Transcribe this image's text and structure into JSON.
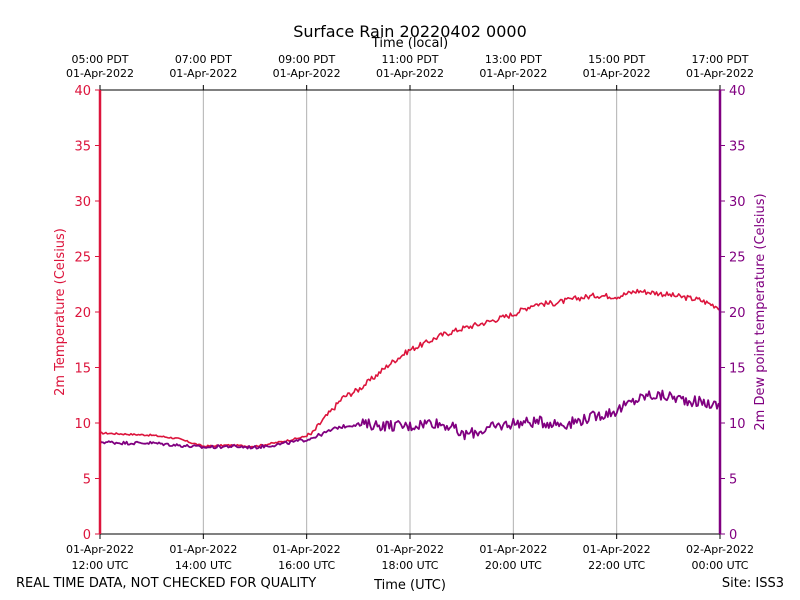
{
  "chart_data": {
    "type": "line",
    "title": "Surface Rain 20220402 0000",
    "top_axis_label": "Time (local)",
    "xlabel": "Time (UTC)",
    "ylabel_left": "2m Temperature (Celsius)",
    "ylabel_right": "2m Dew point temperature (Celsius)",
    "x_range_hours_utc": [
      12,
      24
    ],
    "ylim": [
      0,
      40
    ],
    "y_ticks": [
      "0",
      "5",
      "10",
      "15",
      "20",
      "25",
      "30",
      "35",
      "40"
    ],
    "grid": "vertical",
    "bottom_ticks": [
      {
        "hour": 12,
        "date": "01-Apr-2022",
        "time": "12:00 UTC"
      },
      {
        "hour": 14,
        "date": "01-Apr-2022",
        "time": "14:00 UTC"
      },
      {
        "hour": 16,
        "date": "01-Apr-2022",
        "time": "16:00 UTC"
      },
      {
        "hour": 18,
        "date": "01-Apr-2022",
        "time": "18:00 UTC"
      },
      {
        "hour": 20,
        "date": "01-Apr-2022",
        "time": "20:00 UTC"
      },
      {
        "hour": 22,
        "date": "01-Apr-2022",
        "time": "22:00 UTC"
      },
      {
        "hour": 24,
        "date": "02-Apr-2022",
        "time": "00:00 UTC"
      }
    ],
    "top_ticks": [
      {
        "hour": 12,
        "time": "05:00 PDT",
        "date": "01-Apr-2022"
      },
      {
        "hour": 14,
        "time": "07:00 PDT",
        "date": "01-Apr-2022"
      },
      {
        "hour": 16,
        "time": "09:00 PDT",
        "date": "01-Apr-2022"
      },
      {
        "hour": 18,
        "time": "11:00 PDT",
        "date": "01-Apr-2022"
      },
      {
        "hour": 20,
        "time": "13:00 PDT",
        "date": "01-Apr-2022"
      },
      {
        "hour": 22,
        "time": "15:00 PDT",
        "date": "01-Apr-2022"
      },
      {
        "hour": 24,
        "time": "17:00 PDT",
        "date": "01-Apr-2022"
      }
    ],
    "series": [
      {
        "name": "2m Temperature",
        "color": "#dc143c",
        "axis": "left",
        "x": [
          12.0,
          12.5,
          13.0,
          13.5,
          14.0,
          14.5,
          15.0,
          15.5,
          15.9,
          16.1,
          16.3,
          16.5,
          16.7,
          17.0,
          17.3,
          17.6,
          18.0,
          18.3,
          18.6,
          19.0,
          19.5,
          20.0,
          20.4,
          20.8,
          21.2,
          21.6,
          22.0,
          22.4,
          22.8,
          23.2,
          23.6,
          24.0
        ],
        "values": [
          9.1,
          9.0,
          8.9,
          8.6,
          7.9,
          8.0,
          7.9,
          8.3,
          8.7,
          9.0,
          10.2,
          11.2,
          12.3,
          13.0,
          14.1,
          15.3,
          16.6,
          17.2,
          17.9,
          18.5,
          19.1,
          19.8,
          20.7,
          20.8,
          21.2,
          21.5,
          21.4,
          21.9,
          21.7,
          21.4,
          21.1,
          20.4
        ]
      },
      {
        "name": "2m Dew point temperature",
        "color": "#800080",
        "axis": "right",
        "x": [
          12.0,
          12.5,
          13.0,
          13.5,
          14.0,
          14.5,
          15.0,
          15.5,
          16.0,
          16.3,
          16.6,
          17.0,
          17.5,
          18.0,
          18.4,
          18.8,
          19.0,
          19.3,
          19.6,
          20.0,
          20.5,
          21.0,
          21.5,
          22.0,
          22.3,
          22.6,
          23.0,
          23.3,
          23.6,
          24.0
        ],
        "values": [
          8.3,
          8.2,
          8.2,
          8.0,
          7.8,
          7.9,
          7.8,
          8.1,
          8.5,
          9.0,
          9.6,
          9.9,
          9.8,
          9.7,
          10.1,
          9.7,
          8.9,
          9.2,
          9.6,
          10.0,
          10.1,
          9.9,
          10.5,
          11.1,
          11.9,
          12.5,
          12.4,
          12.1,
          11.9,
          11.5
        ]
      }
    ]
  },
  "footer": {
    "left_note": "REAL TIME DATA, NOT CHECKED FOR QUALITY",
    "site": "Site: ISS3"
  }
}
